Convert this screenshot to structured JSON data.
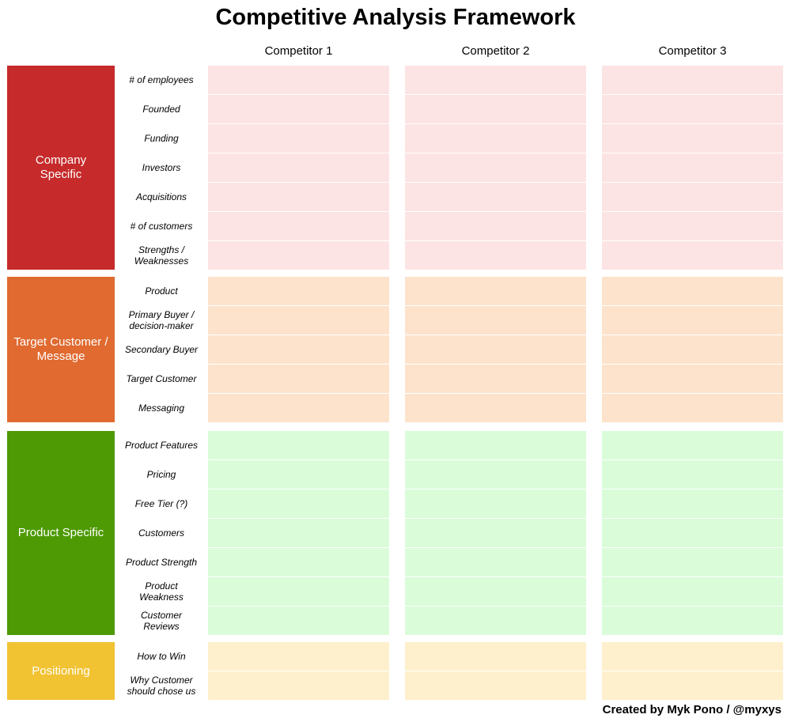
{
  "header": {
    "title": "Competitive Analysis Framework"
  },
  "columns": [
    "Competitor 1",
    "Competitor 2",
    "Competitor 3"
  ],
  "sections": [
    {
      "label": "Company Specific",
      "color": "#c62a2a",
      "cell_color": "#fde4e4",
      "rows": [
        "# of employees",
        "Founded",
        "Funding",
        "Investors",
        "Acquisitions",
        "# of customers",
        "Strengths / Weaknesses"
      ]
    },
    {
      "label": "Target Customer / Message",
      "color": "#e06a30",
      "cell_color": "#fde3cc",
      "rows": [
        "Product",
        "Primary Buyer / decision-maker",
        "Secondary Buyer",
        "Target Customer",
        "Messaging"
      ]
    },
    {
      "label": "Product Specific",
      "color": "#4e9a04",
      "cell_color": "#dafcd9",
      "rows": [
        "Product Features",
        "Pricing",
        "Free Tier (?)",
        "Customers",
        "Product Strength",
        "Product Weakness",
        "Customer Reviews"
      ]
    },
    {
      "label": "Positioning",
      "color": "#f1c232",
      "cell_color": "#fef0cc",
      "rows": [
        "How to Win",
        "Why Customer should chose us"
      ]
    }
  ],
  "footer": "Created by Myk Pono / @myxys"
}
